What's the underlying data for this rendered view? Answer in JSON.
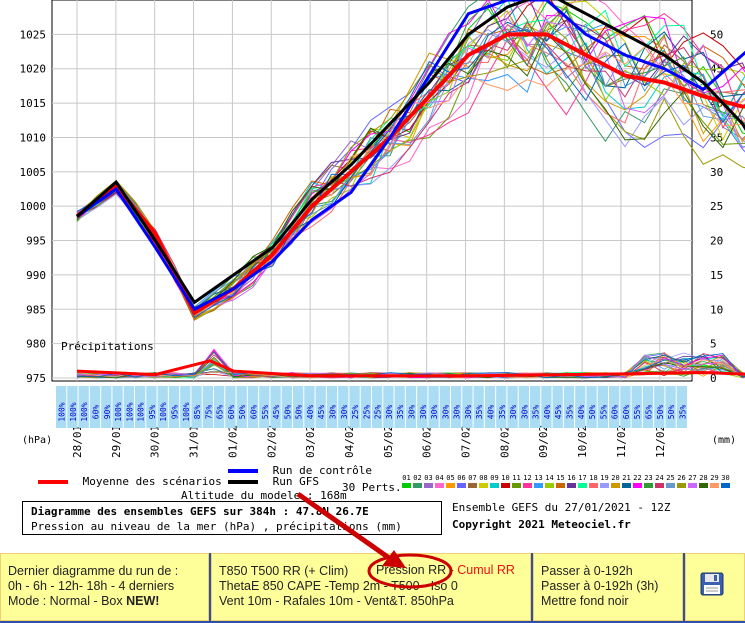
{
  "chart_data": {
    "type": "line",
    "ylabel_left": "(hPa)",
    "ylabel_right": "(mm)",
    "ylim_left": [
      975,
      1030
    ],
    "ylim_right": [
      0,
      55
    ],
    "left_ticks": [
      "975",
      "980",
      "985",
      "990",
      "995",
      "1000",
      "1005",
      "1010",
      "1015",
      "1020",
      "1025"
    ],
    "right_ticks": [
      "0",
      "5",
      "10",
      "15",
      "20",
      "25",
      "30",
      "35",
      "40",
      "45",
      "50"
    ],
    "x_dates": [
      "28/01",
      "29/01",
      "30/01",
      "31/01",
      "01/02",
      "02/02",
      "03/02",
      "04/02",
      "05/02",
      "06/02",
      "07/02",
      "08/02",
      "09/02",
      "10/02",
      "11/02",
      "12/02"
    ],
    "precip_label": "Précipitations",
    "series": [
      {
        "name": "Moyenne des scénarios",
        "color": "#ff0000",
        "points": [
          [
            0,
            998.5
          ],
          [
            0.5,
            1003
          ],
          [
            1,
            996
          ],
          [
            1.5,
            984.5
          ],
          [
            2,
            988
          ],
          [
            2.5,
            993
          ],
          [
            3,
            1000
          ],
          [
            3.5,
            1005
          ],
          [
            4,
            1010
          ],
          [
            4.5,
            1016
          ],
          [
            5,
            1022
          ],
          [
            5.5,
            1025
          ],
          [
            6,
            1025
          ],
          [
            6.5,
            1022
          ],
          [
            7,
            1019
          ],
          [
            7.5,
            1018
          ],
          [
            8,
            1016
          ],
          [
            8.5,
            1014.5
          ],
          [
            8.9,
            1014.5
          ]
        ]
      },
      {
        "name": "Run de contrôle",
        "color": "#0000ff",
        "points": [
          [
            0,
            998.5
          ],
          [
            0.5,
            1002.5
          ],
          [
            1,
            994
          ],
          [
            1.5,
            985
          ],
          [
            2,
            988
          ],
          [
            2.5,
            992
          ],
          [
            3,
            998
          ],
          [
            3.5,
            1002
          ],
          [
            4,
            1010
          ],
          [
            4.5,
            1019
          ],
          [
            5,
            1028
          ],
          [
            5.5,
            1030
          ],
          [
            6,
            1030
          ],
          [
            6.5,
            1025
          ],
          [
            7,
            1022
          ],
          [
            7.5,
            1020
          ],
          [
            8,
            1017
          ],
          [
            8.5,
            1022
          ],
          [
            8.9,
            1026
          ]
        ]
      },
      {
        "name": "Run GFS",
        "color": "#000000",
        "points": [
          [
            0,
            998.5
          ],
          [
            0.5,
            1003.5
          ],
          [
            1,
            995
          ],
          [
            1.5,
            986
          ],
          [
            2,
            990
          ],
          [
            2.5,
            994
          ],
          [
            3,
            1001
          ],
          [
            3.5,
            1006
          ],
          [
            4,
            1012
          ],
          [
            4.5,
            1018
          ],
          [
            5,
            1025
          ],
          [
            5.5,
            1029
          ],
          [
            6,
            1031
          ],
          [
            6.5,
            1028
          ],
          [
            7,
            1025
          ],
          [
            7.5,
            1022
          ],
          [
            8,
            1018
          ],
          [
            8.5,
            1012
          ],
          [
            8.9,
            1004.5
          ]
        ]
      }
    ],
    "percent_values": [
      "100%",
      "100%",
      "100%",
      "60%",
      "90%",
      "100%",
      "100%",
      "100%",
      "95%",
      "100%",
      "95%",
      "100%",
      "85%",
      "75%",
      "65%",
      "60%",
      "50%",
      "60%",
      "55%",
      "45%",
      "50%",
      "50%",
      "40%",
      "45%",
      "30%",
      "30%",
      "25%",
      "25%",
      "25%",
      "30%",
      "35%",
      "30%",
      "30%",
      "30%",
      "30%",
      "30%",
      "30%",
      "35%",
      "40%",
      "35%",
      "30%",
      "30%",
      "35%",
      "40%",
      "45%",
      "35%",
      "40%",
      "50%",
      "55%",
      "60%",
      "60%",
      "55%",
      "65%",
      "50%",
      "50%",
      "35%"
    ],
    "grid": true
  },
  "legend": {
    "mean": "Moyenne des scénarios",
    "control": "Run de contrôle",
    "gfs": "Run GFS",
    "perts": "30 Perts.",
    "pert_numbers": [
      "01",
      "02",
      "03",
      "04",
      "05",
      "06",
      "07",
      "08",
      "09",
      "10",
      "11",
      "12",
      "13",
      "14",
      "15",
      "16",
      "17",
      "18",
      "19",
      "20",
      "21",
      "22",
      "23",
      "24",
      "25",
      "26",
      "27",
      "28",
      "29",
      "30"
    ],
    "pert_colors": [
      "#00cc00",
      "#339966",
      "#9966cc",
      "#ff66cc",
      "#ff9900",
      "#6666ff",
      "#996633",
      "#cccc00",
      "#00cccc",
      "#cc0000",
      "#669900",
      "#ff3399",
      "#3399ff",
      "#99cc00",
      "#cc6600",
      "#663399",
      "#00ff99",
      "#ff6666",
      "#9999ff",
      "#cc9900",
      "#006699",
      "#ff00ff",
      "#339933",
      "#cc3366",
      "#6699cc",
      "#999900",
      "#cc66ff",
      "#336600",
      "#ff9966",
      "#0066cc"
    ],
    "altitude": "Altitude du modele : 168m"
  },
  "info": {
    "title": "Diagramme des ensembles GEFS sur 384h : 47.8N 26.7E",
    "subtitle": "Pression au niveau de la mer (hPa) , précipitations (mm)",
    "run": "Ensemble GEFS du 27/01/2021 - 12Z",
    "copyright": "Copyright 2021 Meteociel.fr"
  },
  "menu": {
    "col1": {
      "line1": "Dernier diagramme du run de :",
      "line2": "0h - 6h - 12h- 18h - 4 derniers",
      "line3_prefix": "Mode : Normal - Box ",
      "line3_new": "NEW!"
    },
    "col2": {
      "a": "T850 T500 RR (+ Clim)",
      "b": "Pression RR",
      "c": " - ",
      "d": "Cumul RR",
      "e": "ThetaE 850 CAPE -Temp 2m - T500 - ",
      "f": "Iso 0",
      "g": "Vent 10m - ",
      "h": "Rafales 10m",
      "i": " - Vent&T. 850hPa"
    },
    "col3": {
      "a": "Passer à 0-192h",
      "b": "Passer à 0-192h (3h)",
      "c": "Mettre fond noir"
    },
    "save_icon": "floppy-disk-icon"
  },
  "colors": {
    "menu_bg": "#ffff99",
    "bar_bg": "#2c52a6",
    "annotation": "#cc0000"
  }
}
